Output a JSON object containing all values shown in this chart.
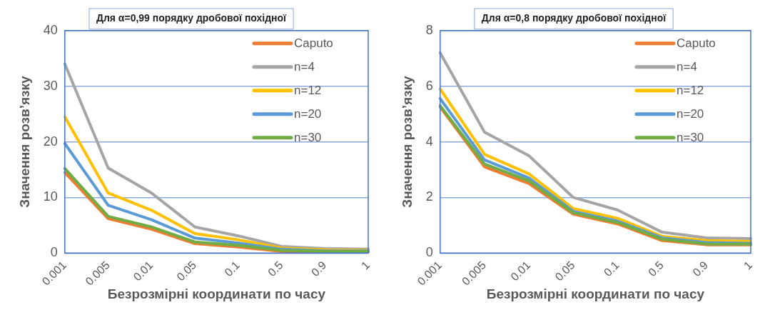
{
  "chart_data": [
    {
      "type": "line",
      "title": "Для α=0,99 порядку дробової похідної",
      "xlabel": "Безрозмірні координати по часу",
      "ylabel": "Значення розв’язку",
      "categories": [
        "0.001",
        "0.005",
        "0.01",
        "0.05",
        "0.1",
        "0.5",
        "0.9",
        "1"
      ],
      "ylim": [
        0,
        40
      ],
      "yticks": [
        0,
        10,
        20,
        30,
        40
      ],
      "grid": "y",
      "legend": "top right",
      "marker": "none",
      "line_style": "solid",
      "series": [
        {
          "name": "Caputo",
          "color": "#ed7d31",
          "values": [
            14.5,
            6.2,
            4.3,
            1.7,
            1.1,
            0.3,
            0.2,
            0.2
          ]
        },
        {
          "name": "n=4",
          "color": "#a5a5a5",
          "values": [
            34,
            15.3,
            10.8,
            4.7,
            3.1,
            1.2,
            0.8,
            0.7
          ]
        },
        {
          "name": "n=12",
          "color": "#ffc000",
          "values": [
            24.5,
            10.8,
            7.7,
            3.5,
            2.4,
            0.9,
            0.6,
            0.5
          ]
        },
        {
          "name": "n=20",
          "color": "#5b9bd5",
          "values": [
            19.7,
            8.6,
            6.0,
            2.7,
            1.8,
            0.7,
            0.4,
            0.4
          ]
        },
        {
          "name": "n=30",
          "color": "#70ad47",
          "values": [
            15.2,
            6.6,
            4.7,
            2.0,
            1.4,
            0.5,
            0.3,
            0.3
          ]
        }
      ]
    },
    {
      "type": "line",
      "title": "Для α=0,8 порядку дробової похідної",
      "xlabel": "Безрозмірні координати по часу",
      "ylabel": "Значення розв’язку",
      "categories": [
        "0.001",
        "0.005",
        "0.01",
        "0.05",
        "0.1",
        "0.5",
        "0.9",
        "1"
      ],
      "ylim": [
        0,
        8
      ],
      "yticks": [
        0,
        2,
        4,
        6,
        8
      ],
      "grid": "y",
      "legend": "top right",
      "marker": "none",
      "line_style": "solid",
      "series": [
        {
          "name": "Caputo",
          "color": "#ed7d31",
          "values": [
            5.25,
            3.1,
            2.5,
            1.4,
            1.05,
            0.45,
            0.3,
            0.3
          ]
        },
        {
          "name": "n=4",
          "color": "#a5a5a5",
          "values": [
            7.2,
            4.35,
            3.5,
            2.0,
            1.55,
            0.75,
            0.55,
            0.52
          ]
        },
        {
          "name": "n=12",
          "color": "#ffc000",
          "values": [
            5.9,
            3.55,
            2.85,
            1.6,
            1.25,
            0.6,
            0.45,
            0.42
          ]
        },
        {
          "name": "n=20",
          "color": "#5b9bd5",
          "values": [
            5.55,
            3.35,
            2.7,
            1.5,
            1.15,
            0.55,
            0.38,
            0.35
          ]
        },
        {
          "name": "n=30",
          "color": "#70ad47",
          "values": [
            5.3,
            3.2,
            2.6,
            1.45,
            1.1,
            0.5,
            0.33,
            0.32
          ]
        }
      ]
    }
  ]
}
